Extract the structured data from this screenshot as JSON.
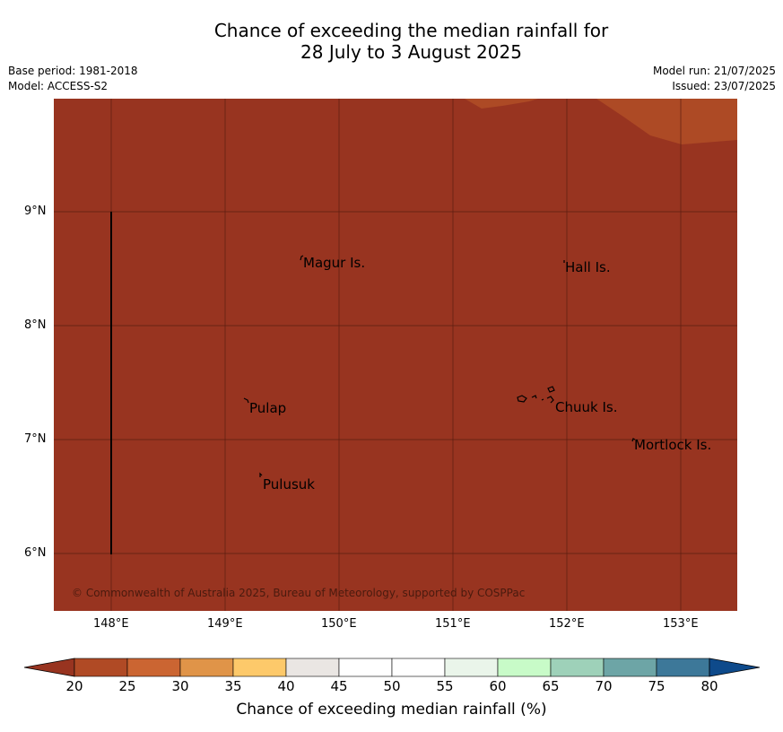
{
  "header": {
    "title_line1": "Chance of exceeding the median rainfall for",
    "title_line2": "28 July to 3 August 2025",
    "base_period": "Base period: 1981-2018",
    "model": "Model: ACCESS-S2",
    "model_run": "Model run: 21/07/2025",
    "issued": "Issued: 23/07/2025"
  },
  "map": {
    "lon_ticks": [
      "148°E",
      "149°E",
      "150°E",
      "151°E",
      "152°E",
      "153°E"
    ],
    "lat_ticks": [
      "9°N",
      "8°N",
      "7°N",
      "6°N"
    ],
    "places": [
      {
        "name": "Magur Is."
      },
      {
        "name": "Hall Is."
      },
      {
        "name": "Pulap"
      },
      {
        "name": "Chuuk Is."
      },
      {
        "name": "Mortlock Is."
      },
      {
        "name": "Pulusuk"
      }
    ],
    "copyright": "© Commonwealth of Australia 2025, Bureau of Meteorology, supported by COSPPac",
    "colors": {
      "main_fill": "#983420",
      "lighter_fill": "#ad4a25",
      "grid": "#5a1e10"
    }
  },
  "colorbar": {
    "label": "Chance of exceeding median rainfall (%)",
    "ticks": [
      "20",
      "25",
      "30",
      "35",
      "40",
      "45",
      "50",
      "55",
      "60",
      "65",
      "70",
      "75",
      "80"
    ],
    "colors": [
      "#983420",
      "#b04a25",
      "#cb6532",
      "#e09448",
      "#fdc96a",
      "#eae6e3",
      "#ffffff",
      "#ffffff",
      "#eaf5ea",
      "#c8fbc8",
      "#9ed1b9",
      "#6da5a6",
      "#3d7899",
      "#0e4a8b"
    ]
  }
}
